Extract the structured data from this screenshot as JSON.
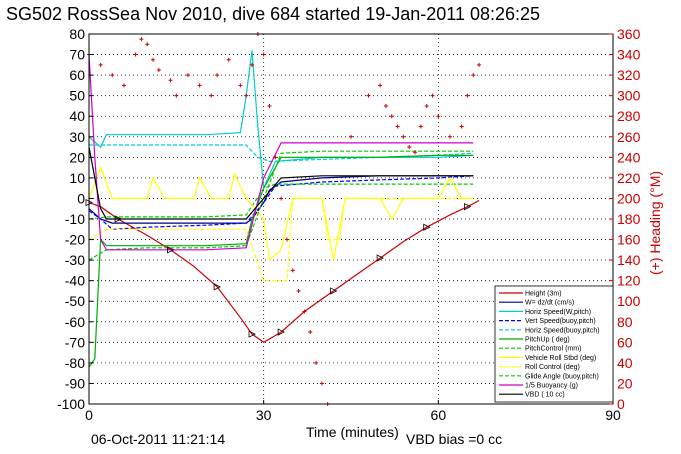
{
  "chart_data": {
    "type": "line",
    "title": "SG502 RossSea Nov 2010, dive 684 started 19-Jan-2011 08:26:25",
    "xlabel": "Time (minutes)",
    "ylabel_right": "(+) Heading (°M)",
    "footer_left": "06-Oct-2011 11:21:14",
    "footer_right": "VBD bias =0 cc",
    "xlim": [
      0,
      90
    ],
    "ylim": [
      -100,
      80
    ],
    "ylim_right": [
      0,
      360
    ],
    "x_ticks": [
      "0",
      "30",
      "60",
      "90"
    ],
    "y_ticks": [
      "80",
      "70",
      "60",
      "50",
      "40",
      "30",
      "20",
      "10",
      "0",
      "-10",
      "-20",
      "-30",
      "-40",
      "-50",
      "-60",
      "-70",
      "-80",
      "-90",
      "-100"
    ],
    "y_ticks_right": [
      "360",
      "340",
      "320",
      "300",
      "280",
      "260",
      "240",
      "220",
      "200",
      "180",
      "160",
      "140",
      "120",
      "100",
      "80",
      "60",
      "40",
      "20",
      "0"
    ],
    "grid": true,
    "legend_position": "bottom-right",
    "series": [
      {
        "name": "Height (3m)",
        "color": "#cc0000",
        "points": [
          [
            0,
            -2
          ],
          [
            2,
            -4
          ],
          [
            5,
            -10
          ],
          [
            10,
            -18
          ],
          [
            14,
            -25
          ],
          [
            18,
            -33
          ],
          [
            22,
            -43
          ],
          [
            26,
            -58
          ],
          [
            28,
            -66
          ],
          [
            30,
            -70
          ],
          [
            33,
            -65
          ],
          [
            37,
            -55
          ],
          [
            42,
            -45
          ],
          [
            46,
            -37
          ],
          [
            50,
            -29
          ],
          [
            54,
            -21
          ],
          [
            58,
            -14
          ],
          [
            62,
            -8
          ],
          [
            65,
            -4
          ],
          [
            67,
            -1
          ]
        ]
      },
      {
        "name": "W= dz/dt (cm/s)",
        "color": "#000080",
        "points": [
          [
            0,
            -5
          ],
          [
            2,
            -10
          ],
          [
            4,
            -12
          ],
          [
            10,
            -12
          ],
          [
            20,
            -12
          ],
          [
            27,
            -12
          ],
          [
            28,
            -10
          ],
          [
            30,
            -2
          ],
          [
            31,
            4
          ],
          [
            33,
            8
          ],
          [
            40,
            10
          ],
          [
            50,
            11
          ],
          [
            60,
            11
          ],
          [
            66,
            11
          ]
        ]
      },
      {
        "name": "Horiz Speed(W,pitch)",
        "color": "#00cccc",
        "points": [
          [
            0,
            30
          ],
          [
            2,
            25
          ],
          [
            3,
            31
          ],
          [
            10,
            31
          ],
          [
            20,
            31
          ],
          [
            26,
            32
          ],
          [
            27,
            50
          ],
          [
            28,
            72
          ],
          [
            29,
            35
          ],
          [
            30,
            5
          ],
          [
            32,
            18
          ],
          [
            40,
            20
          ],
          [
            50,
            20
          ],
          [
            60,
            20
          ],
          [
            66,
            21
          ]
        ]
      },
      {
        "name": "Vert Speed(buoy,pitch)",
        "color": "#0000ff",
        "points": [
          [
            0,
            -6
          ],
          [
            2,
            -10
          ],
          [
            4,
            -15
          ],
          [
            10,
            -14
          ],
          [
            20,
            -13
          ],
          [
            27,
            -12
          ],
          [
            30,
            -2
          ],
          [
            32,
            6
          ],
          [
            40,
            8
          ],
          [
            50,
            9
          ],
          [
            60,
            10
          ],
          [
            66,
            11
          ]
        ]
      },
      {
        "name": "Horiz Speed(buoy,pitch)",
        "color": "#00cccc",
        "points": [
          [
            0,
            26
          ],
          [
            3,
            26
          ],
          [
            10,
            26
          ],
          [
            20,
            26
          ],
          [
            27,
            26
          ],
          [
            29,
            20
          ],
          [
            31,
            18
          ],
          [
            40,
            19
          ],
          [
            50,
            20
          ],
          [
            60,
            21
          ],
          [
            66,
            22
          ]
        ]
      },
      {
        "name": "PitchUp (deg)",
        "color": "#00aa00",
        "points": [
          [
            0,
            -82
          ],
          [
            1,
            -78
          ],
          [
            2,
            -20
          ],
          [
            3,
            -23
          ],
          [
            10,
            -23
          ],
          [
            20,
            -23
          ],
          [
            27,
            -22
          ],
          [
            28,
            -10
          ],
          [
            30,
            5
          ],
          [
            33,
            20
          ],
          [
            40,
            20
          ],
          [
            50,
            20
          ],
          [
            60,
            21
          ],
          [
            66,
            21
          ]
        ]
      },
      {
        "name": "PitchControl (mm)",
        "color": "#00cc00",
        "points": [
          [
            0,
            -10
          ],
          [
            3,
            -9
          ],
          [
            10,
            -9
          ],
          [
            20,
            -9
          ],
          [
            27,
            -8
          ],
          [
            30,
            5
          ],
          [
            32,
            7
          ],
          [
            40,
            7
          ],
          [
            50,
            7
          ],
          [
            60,
            7
          ],
          [
            66,
            7
          ]
        ]
      },
      {
        "name": "Vehicle Roll Stbd (deg)",
        "color": "#ffff00",
        "points": [
          [
            0,
            0
          ],
          [
            2,
            15
          ],
          [
            4,
            0
          ],
          [
            8,
            0
          ],
          [
            10,
            0
          ],
          [
            11,
            10
          ],
          [
            13,
            0
          ],
          [
            18,
            0
          ],
          [
            19,
            10
          ],
          [
            21,
            0
          ],
          [
            24,
            0
          ],
          [
            25,
            12
          ],
          [
            27,
            0
          ],
          [
            30,
            -10
          ],
          [
            31,
            -30
          ],
          [
            33,
            -25
          ],
          [
            35,
            0
          ],
          [
            40,
            0
          ],
          [
            42,
            -30
          ],
          [
            44,
            0
          ],
          [
            50,
            0
          ],
          [
            52,
            -10
          ],
          [
            54,
            0
          ],
          [
            60,
            0
          ],
          [
            62,
            10
          ],
          [
            64,
            0
          ],
          [
            66,
            0
          ]
        ]
      },
      {
        "name": "Roll Control (deg)",
        "color": "#ffff00",
        "points": [
          [
            0,
            -20
          ],
          [
            3,
            -15
          ],
          [
            10,
            -15
          ],
          [
            20,
            -15
          ],
          [
            27,
            -15
          ],
          [
            30,
            -40
          ],
          [
            34,
            -40
          ],
          [
            35,
            0
          ],
          [
            40,
            0
          ],
          [
            41,
            -20
          ],
          [
            43,
            -20
          ],
          [
            44,
            0
          ],
          [
            66,
            0
          ]
        ]
      },
      {
        "name": "Glide Angle (buoy,pitch)",
        "color": "#00cc00",
        "points": [
          [
            0,
            -30
          ],
          [
            3,
            -25
          ],
          [
            10,
            -24
          ],
          [
            20,
            -24
          ],
          [
            27,
            -23
          ],
          [
            30,
            0
          ],
          [
            33,
            22
          ],
          [
            40,
            23
          ],
          [
            50,
            23
          ],
          [
            60,
            23
          ],
          [
            66,
            23
          ]
        ]
      },
      {
        "name": "1/5 Buoyancy (g)",
        "color": "#cc00cc",
        "points": [
          [
            0,
            70
          ],
          [
            1,
            20
          ],
          [
            2,
            -20
          ],
          [
            3,
            -25
          ],
          [
            10,
            -25
          ],
          [
            20,
            -25
          ],
          [
            27,
            -24
          ],
          [
            30,
            10
          ],
          [
            33,
            27
          ],
          [
            40,
            27
          ],
          [
            50,
            27
          ],
          [
            60,
            27
          ],
          [
            66,
            27
          ]
        ]
      },
      {
        "name": "VBD ( 10 cc)",
        "color": "#000000",
        "points": [
          [
            0,
            25
          ],
          [
            1,
            10
          ],
          [
            2,
            -5
          ],
          [
            3,
            -10
          ],
          [
            10,
            -10
          ],
          [
            20,
            -10
          ],
          [
            27,
            -10
          ],
          [
            30,
            0
          ],
          [
            33,
            10
          ],
          [
            40,
            11
          ],
          [
            50,
            11
          ],
          [
            60,
            11
          ],
          [
            66,
            11
          ]
        ]
      }
    ],
    "heading_series": {
      "name": "(+) Heading",
      "color": "#cc0000",
      "axis": "right",
      "points": [
        [
          0,
          340
        ],
        [
          2,
          330
        ],
        [
          4,
          320
        ],
        [
          6,
          310
        ],
        [
          8,
          340
        ],
        [
          9,
          355
        ],
        [
          10,
          350
        ],
        [
          11,
          335
        ],
        [
          12,
          325
        ],
        [
          14,
          315
        ],
        [
          15,
          300
        ],
        [
          17,
          320
        ],
        [
          19,
          310
        ],
        [
          21,
          300
        ],
        [
          22,
          320
        ],
        [
          24,
          335
        ],
        [
          26,
          310
        ],
        [
          27,
          300
        ],
        [
          28,
          330
        ],
        [
          29,
          360
        ],
        [
          30,
          340
        ],
        [
          31,
          290
        ],
        [
          32,
          240
        ],
        [
          33,
          200
        ],
        [
          34,
          160
        ],
        [
          35,
          130
        ],
        [
          36,
          110
        ],
        [
          37,
          90
        ],
        [
          38,
          70
        ],
        [
          39,
          40
        ],
        [
          40,
          20
        ],
        [
          41,
          0
        ],
        [
          42,
          -10
        ],
        [
          45,
          260
        ],
        [
          48,
          300
        ],
        [
          50,
          310
        ],
        [
          51,
          290
        ],
        [
          52,
          280
        ],
        [
          53,
          270
        ],
        [
          54,
          260
        ],
        [
          55,
          250
        ],
        [
          56,
          245
        ],
        [
          57,
          270
        ],
        [
          58,
          290
        ],
        [
          59,
          300
        ],
        [
          60,
          280
        ],
        [
          62,
          260
        ],
        [
          64,
          270
        ],
        [
          65,
          300
        ],
        [
          66,
          320
        ],
        [
          67,
          330
        ]
      ]
    },
    "legend": [
      "Height (3m)",
      "W= dz/dt (cm/s)",
      "Horiz Speed(W,pitch)",
      "Vert Speed(buoy,pitch)",
      "Horiz Speed(buoy,pitch)",
      "PitchUp ( deg)",
      "PitchControl (mm)",
      "Vehicle Roll Stbd (deg)",
      "Roll Control (deg)",
      "Glide Angle (buoy,pitch)",
      "1/5 Buoyancy (g)",
      "VBD ( 10 cc)"
    ]
  }
}
